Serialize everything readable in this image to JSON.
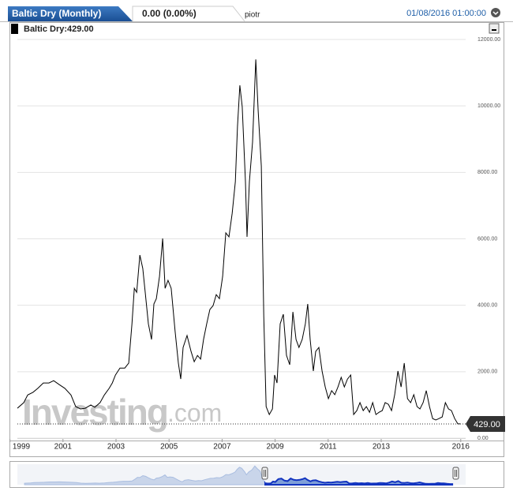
{
  "header": {
    "tab_title": "Baltic Dry (Monthly)",
    "change": "0.00 (0.00%)",
    "user": "piotr",
    "datetime": "01/08/2016 01:00:00"
  },
  "chart_data": {
    "type": "line",
    "legend": "Baltic Dry:429.00",
    "last_value_label": "429.00",
    "watermark": "Investing",
    "watermark_suffix": ".com",
    "color": "#000000",
    "x": [
      1999.28,
      1999.52,
      1999.67,
      1999.87,
      2000.05,
      2000.26,
      2000.47,
      2000.65,
      2000.86,
      2001.07,
      2001.3,
      2001.48,
      2001.66,
      2001.84,
      2002.05,
      2002.2,
      2002.4,
      2002.56,
      2002.74,
      2002.86,
      2002.98,
      2003.15,
      2003.33,
      2003.48,
      2003.6,
      2003.69,
      2003.78,
      2003.9,
      2004.01,
      2004.1,
      2004.22,
      2004.34,
      2004.43,
      2004.52,
      2004.64,
      2004.76,
      2004.85,
      2004.96,
      2005.08,
      2005.23,
      2005.35,
      2005.44,
      2005.53,
      2005.68,
      2005.83,
      2005.95,
      2006.07,
      2006.19,
      2006.3,
      2006.42,
      2006.54,
      2006.66,
      2006.78,
      2006.9,
      2007.02,
      2007.14,
      2007.26,
      2007.38,
      2007.5,
      2007.58,
      2007.67,
      2007.76,
      2007.88,
      2007.94,
      2008.03,
      2008.15,
      2008.27,
      2008.36,
      2008.48,
      2008.57,
      2008.66,
      2008.78,
      2008.9,
      2008.98,
      2009.07,
      2009.19,
      2009.31,
      2009.43,
      2009.55,
      2009.67,
      2009.79,
      2009.9,
      2010.02,
      2010.14,
      2010.23,
      2010.32,
      2010.44,
      2010.53,
      2010.65,
      2010.77,
      2010.89,
      2011.01,
      2011.13,
      2011.25,
      2011.37,
      2011.49,
      2011.61,
      2011.73,
      2011.85,
      2011.96,
      2012.08,
      2012.2,
      2012.32,
      2012.44,
      2012.56,
      2012.68,
      2012.8,
      2012.92,
      2013.04,
      2013.15,
      2013.27,
      2013.39,
      2013.51,
      2013.63,
      2013.75,
      2013.87,
      2013.99,
      2014.11,
      2014.23,
      2014.35,
      2014.46,
      2014.58,
      2014.7,
      2014.82,
      2014.94,
      2015.06,
      2015.18,
      2015.3,
      2015.42,
      2015.54,
      2015.65,
      2015.77,
      2015.89,
      2015.98
    ],
    "values": [
      900,
      1070,
      1300,
      1380,
      1500,
      1660,
      1660,
      1730,
      1610,
      1500,
      1300,
      950,
      880,
      900,
      1000,
      930,
      1070,
      1300,
      1500,
      1660,
      1900,
      2110,
      2110,
      2260,
      3440,
      4510,
      4390,
      5510,
      5110,
      4390,
      3440,
      2970,
      4040,
      4200,
      4870,
      6010,
      4510,
      4750,
      4510,
      3210,
      2260,
      1780,
      2730,
      3090,
      2610,
      2300,
      2490,
      2380,
      2970,
      3440,
      3870,
      3990,
      4320,
      4200,
      4870,
      6180,
      6060,
      6770,
      7720,
      9380,
      10620,
      9980,
      7720,
      6060,
      7720,
      8910,
      11400,
      9860,
      8190,
      3680,
      950,
      710,
      880,
      1900,
      1660,
      3440,
      3730,
      2490,
      2210,
      3800,
      2970,
      2730,
      2970,
      3440,
      4040,
      2970,
      2020,
      2610,
      2730,
      2020,
      1540,
      1190,
      1430,
      1310,
      1540,
      1830,
      1540,
      1780,
      1900,
      710,
      830,
      1070,
      830,
      950,
      780,
      1070,
      710,
      780,
      830,
      1070,
      1020,
      830,
      1310,
      2020,
      1540,
      2260,
      1190,
      1070,
      1310,
      950,
      880,
      1070,
      1430,
      950,
      590,
      550,
      590,
      640,
      1070,
      880,
      830,
      590,
      430,
      429
    ],
    "xlim": [
      1999,
      2016.5
    ],
    "xticks": [
      1999,
      2001,
      2003,
      2005,
      2007,
      2009,
      2011,
      2013,
      2016
    ],
    "ylim": [
      0,
      12000
    ],
    "yticks": [
      {
        "value": 0,
        "label": "0.00"
      },
      {
        "value": 2000,
        "label": "2000.00"
      },
      {
        "value": 4000,
        "label": "4000.00"
      },
      {
        "value": 6000,
        "label": "6000.00"
      },
      {
        "value": 8000,
        "label": "8000.00"
      },
      {
        "value": 10000,
        "label": "10000.00"
      },
      {
        "value": 12000,
        "label": "12000.00"
      }
    ],
    "grid": true
  }
}
